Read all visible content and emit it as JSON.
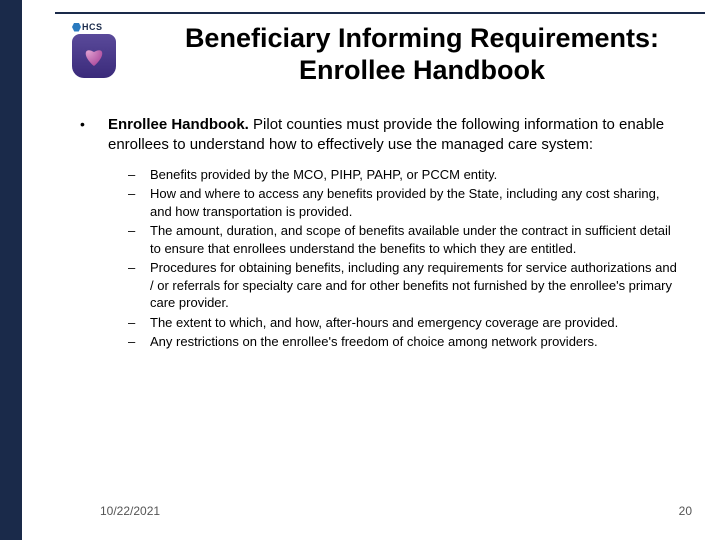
{
  "logo": {
    "text": "HCS"
  },
  "title_line1": "Beneficiary Informing Requirements:",
  "title_line2": "Enrollee Handbook",
  "lead_bold": "Enrollee Handbook.",
  "lead_rest": " Pilot counties must provide the following information to enable enrollees to understand how to effectively use the managed care system:",
  "subs": [
    "Benefits provided by the MCO, PIHP, PAHP, or PCCM entity.",
    "How and where to access any benefits provided by the State, including any cost sharing, and how transportation is provided.",
    "The amount, duration, and scope of benefits available under the contract in sufficient detail to ensure that enrollees understand the benefits to which they are entitled.",
    "Procedures for obtaining benefits, including any requirements for service authorizations and / or referrals for specialty care and for other benefits not furnished by the enrollee's primary care provider.",
    "The extent to which, and how, after-hours and emergency coverage are provided.",
    "Any restrictions on the enrollee's freedom of choice among network providers."
  ],
  "footer": {
    "date": "10/22/2021",
    "page": "20"
  },
  "colors": {
    "sidebar": "#1a2a4a",
    "rule": "#1a2a4a"
  }
}
